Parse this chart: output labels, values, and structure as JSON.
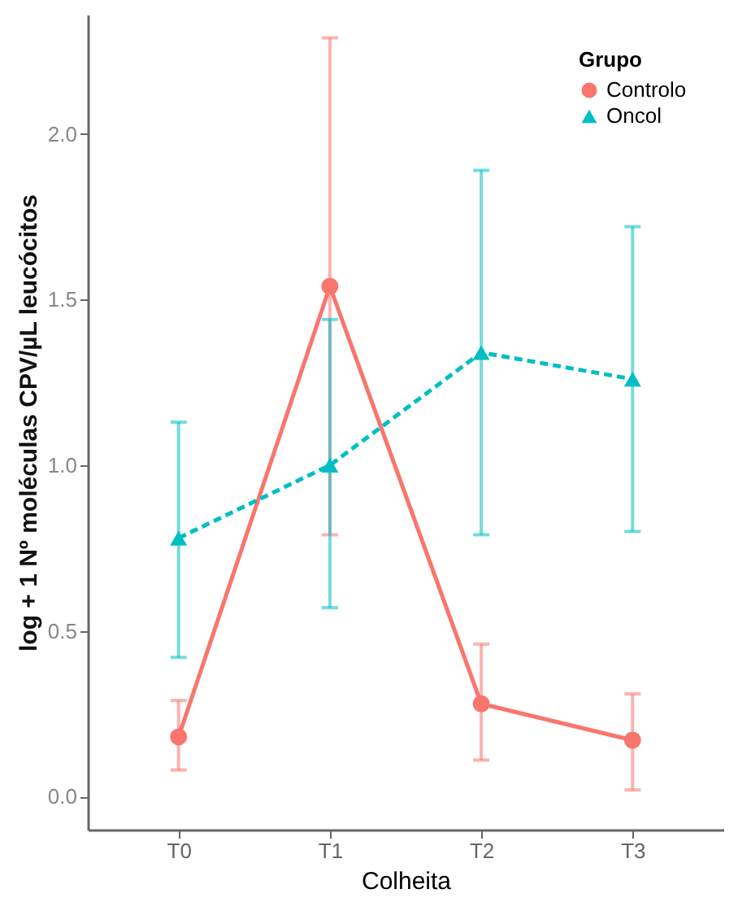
{
  "chart_data": {
    "type": "line",
    "xlabel": "Colheita",
    "ylabel": "log + 1  Nº moléculas CPV/µL leucócitos",
    "legend_title": "Grupo",
    "categories": [
      "T0",
      "T1",
      "T2",
      "T3"
    ],
    "series": [
      {
        "name": "Controlo",
        "color": "#f8766d",
        "marker": "circle",
        "line_style": "solid",
        "values": [
          0.18,
          1.54,
          0.28,
          0.17
        ],
        "errors": [
          [
            0.08,
            0.29
          ],
          [
            0.79,
            2.29
          ],
          [
            0.11,
            0.46
          ],
          [
            0.02,
            0.31
          ]
        ]
      },
      {
        "name": "Oncol",
        "color": "#00bfc4",
        "marker": "triangle",
        "line_style": "dashed",
        "values": [
          0.78,
          1.0,
          1.34,
          1.26
        ],
        "errors": [
          [
            0.42,
            1.13
          ],
          [
            0.57,
            1.44
          ],
          [
            0.79,
            1.89
          ],
          [
            0.8,
            1.72
          ]
        ]
      }
    ],
    "ylim": [
      -0.1,
      2.36
    ],
    "yticks": [
      {
        "value": 0,
        "label": "0.0"
      },
      0.5,
      {
        "value": 1,
        "label": "1.0"
      },
      1.5,
      {
        "value": 2,
        "label": "2.0"
      }
    ],
    "grid": false,
    "legend": "top right"
  }
}
